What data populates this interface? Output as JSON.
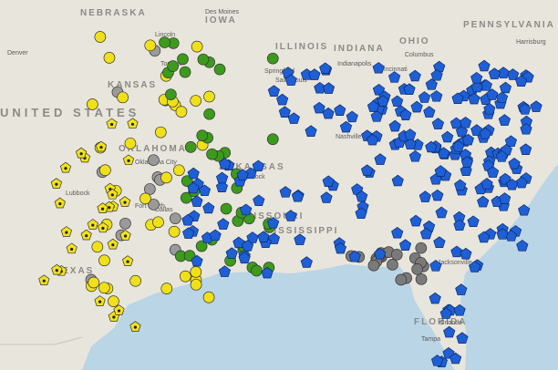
{
  "states": [
    "NEBRASKA",
    "IOWA",
    "ILLINOIS",
    "INDIANA",
    "OHIO",
    "PENNSYLVANIA",
    "KANSAS",
    "MISSOURI",
    "OKLAHOMA",
    "ARKANSAS",
    "MISSISSIPPI",
    "TEXAS",
    "FLORIDA",
    "UNITED STATES"
  ],
  "cities": [
    "Denver",
    "Lincoln",
    "Des Moines",
    "Topeka",
    "Springfield",
    "Saint Louis",
    "Indianapolis",
    "Cincinnati",
    "Columbus",
    "Harrisburg",
    "Oklahoma City",
    "Little Rock",
    "Nashville",
    "Lubbock",
    "Fort Worth",
    "Dallas",
    "Jacksonville",
    "Tampa",
    "Orlando"
  ]
}
